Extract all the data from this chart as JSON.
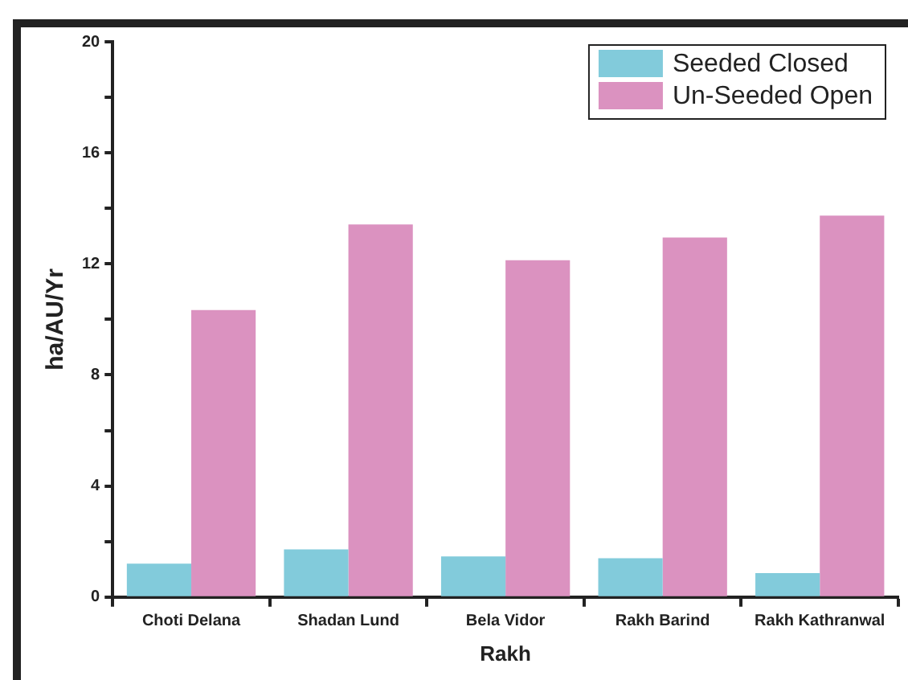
{
  "chart_data": {
    "type": "bar",
    "xlabel": "Rakh",
    "ylabel": "ha/AU/Yr",
    "categories": [
      "Choti Delana",
      "Shadan Lund",
      "Bela Vidor",
      "Rakh Barind",
      "Rakh Kathranwal"
    ],
    "series": [
      {
        "name": "Seeded Closed",
        "color": "#82cbdb",
        "values": [
          1.2,
          1.72,
          1.46,
          1.4,
          0.86
        ]
      },
      {
        "name": "Un-Seeded Open",
        "color": "#db92c0",
        "values": [
          10.34,
          13.42,
          12.13,
          12.95,
          13.74
        ]
      }
    ],
    "ylim": [
      0,
      20
    ],
    "yticks": [
      0,
      {
        "value": 2,
        "label": null
      },
      4,
      {
        "value": 6,
        "label": null
      },
      8,
      {
        "value": 10,
        "label": null
      },
      12,
      {
        "value": 14,
        "label": null
      },
      16,
      {
        "value": 18,
        "label": null
      },
      20
    ],
    "grid": false,
    "legend": "top right"
  }
}
